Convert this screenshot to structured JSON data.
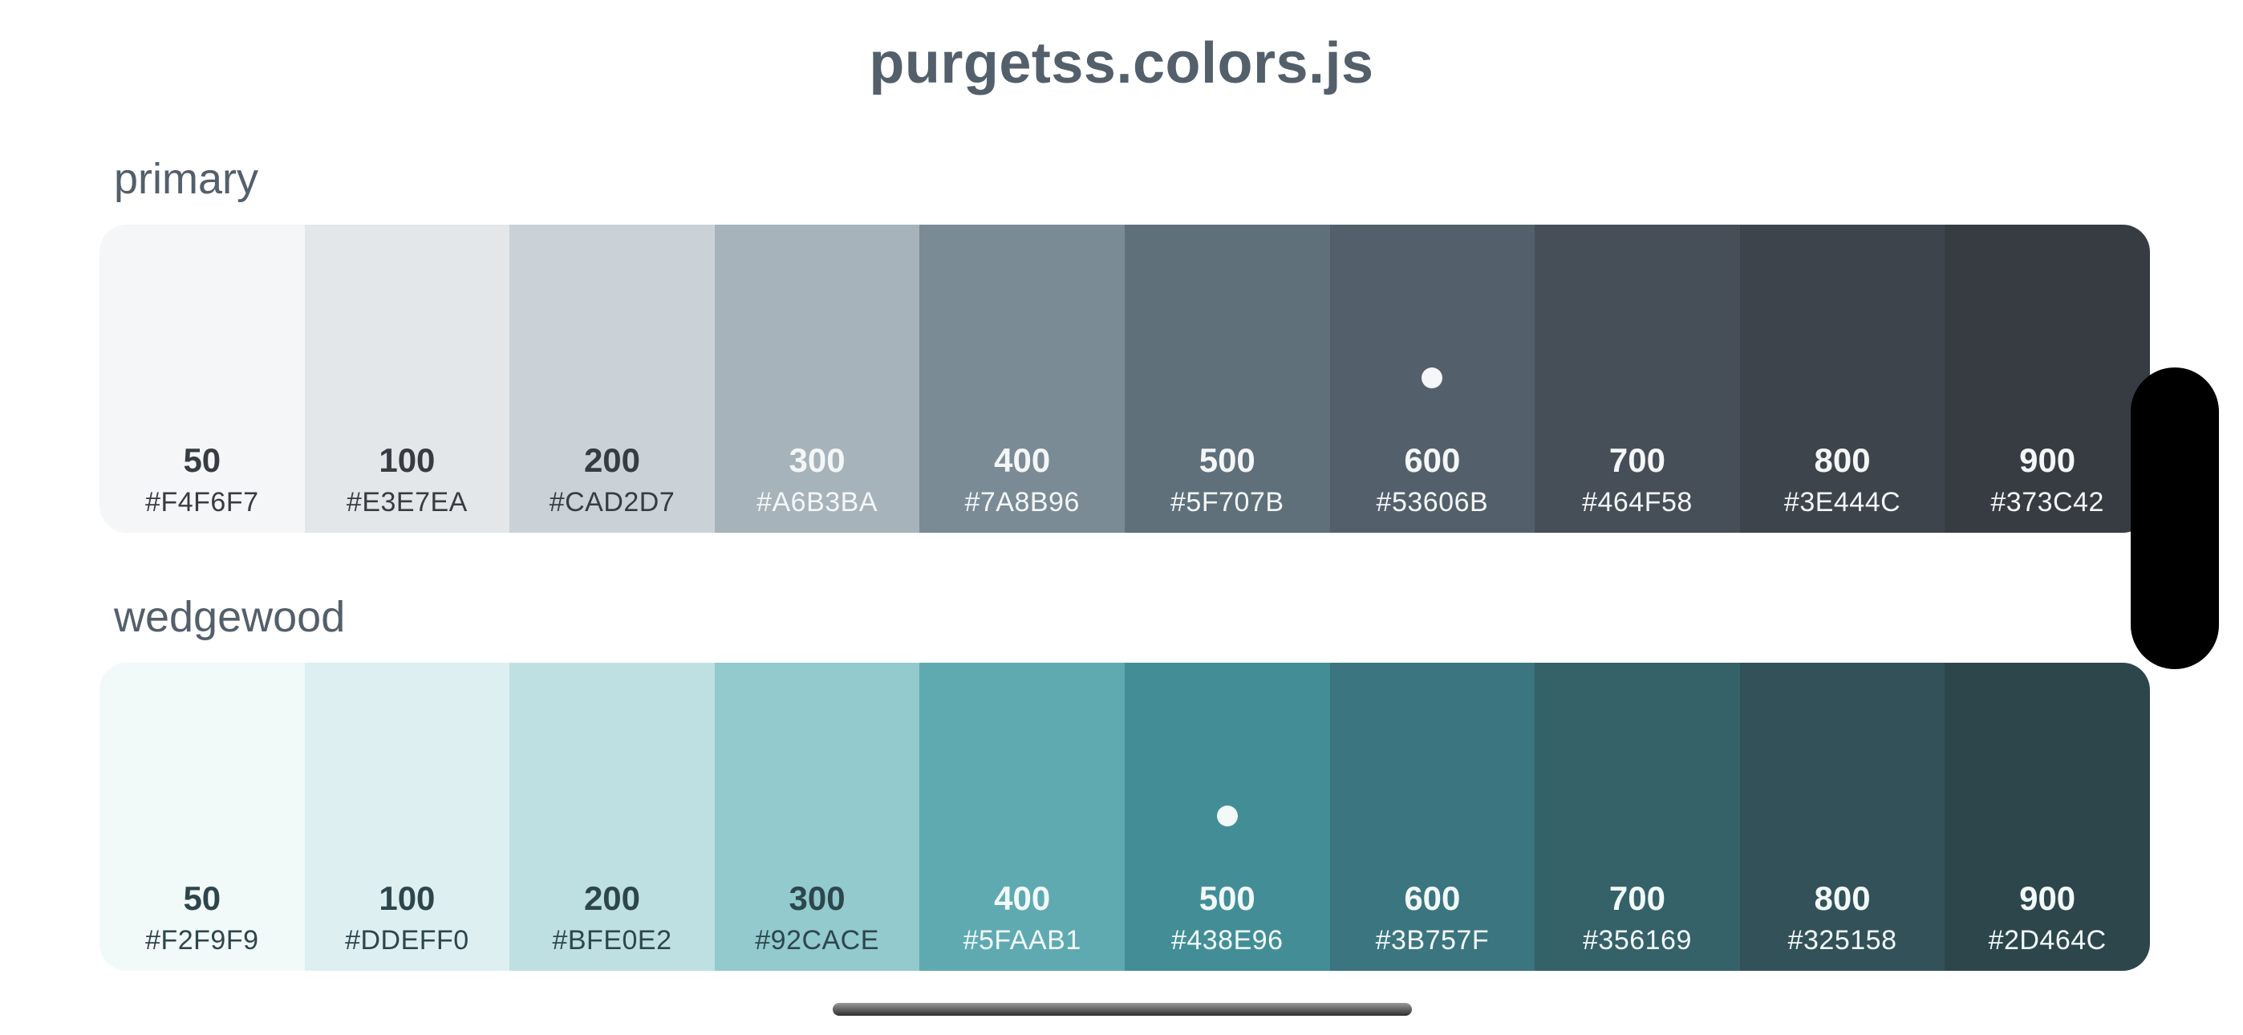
{
  "title": "purgetss.colors.js",
  "palettes": [
    {
      "name": "primary",
      "default_shade": "600",
      "swatches": [
        {
          "shade": "50",
          "hex": "#F4F6F7",
          "bg": "#F4F6F7",
          "text": "#373C42"
        },
        {
          "shade": "100",
          "hex": "#E3E7EA",
          "bg": "#E3E7EA",
          "text": "#373C42"
        },
        {
          "shade": "200",
          "hex": "#CAD2D7",
          "bg": "#CAD2D7",
          "text": "#373C42"
        },
        {
          "shade": "300",
          "hex": "#A6B3BA",
          "bg": "#A6B3BA",
          "text": "#F4F6F7"
        },
        {
          "shade": "400",
          "hex": "#7A8B96",
          "bg": "#7A8B96",
          "text": "#F4F6F7"
        },
        {
          "shade": "500",
          "hex": "#5F707B",
          "bg": "#5F707B",
          "text": "#F4F6F7"
        },
        {
          "shade": "600",
          "hex": "#53606B",
          "bg": "#53606B",
          "text": "#F4F6F7"
        },
        {
          "shade": "700",
          "hex": "#464F58",
          "bg": "#464F58",
          "text": "#F4F6F7"
        },
        {
          "shade": "800",
          "hex": "#3E444C",
          "bg": "#3E444C",
          "text": "#F4F6F7"
        },
        {
          "shade": "900",
          "hex": "#373C42",
          "bg": "#373C42",
          "text": "#F4F6F7"
        }
      ]
    },
    {
      "name": "wedgewood",
      "default_shade": "500",
      "swatches": [
        {
          "shade": "50",
          "hex": "#F2F9F9",
          "bg": "#F2F9F9",
          "text": "#2D464C"
        },
        {
          "shade": "100",
          "hex": "#DDEFF0",
          "bg": "#DDEFF0",
          "text": "#2D464C"
        },
        {
          "shade": "200",
          "hex": "#BFE0E2",
          "bg": "#BFE0E2",
          "text": "#2D464C"
        },
        {
          "shade": "300",
          "hex": "#92CACE",
          "bg": "#92CACE",
          "text": "#2D464C"
        },
        {
          "shade": "400",
          "hex": "#5FAAB1",
          "bg": "#5FAAB1",
          "text": "#F2F9F9"
        },
        {
          "shade": "500",
          "hex": "#438E96",
          "bg": "#438E96",
          "text": "#F2F9F9"
        },
        {
          "shade": "600",
          "hex": "#3B757F",
          "bg": "#3B757F",
          "text": "#F2F9F9"
        },
        {
          "shade": "700",
          "hex": "#356169",
          "bg": "#356169",
          "text": "#F2F9F9"
        },
        {
          "shade": "800",
          "hex": "#325158",
          "bg": "#325158",
          "text": "#F2F9F9"
        },
        {
          "shade": "900",
          "hex": "#2D464C",
          "bg": "#2D464C",
          "text": "#F2F9F9"
        }
      ]
    }
  ]
}
